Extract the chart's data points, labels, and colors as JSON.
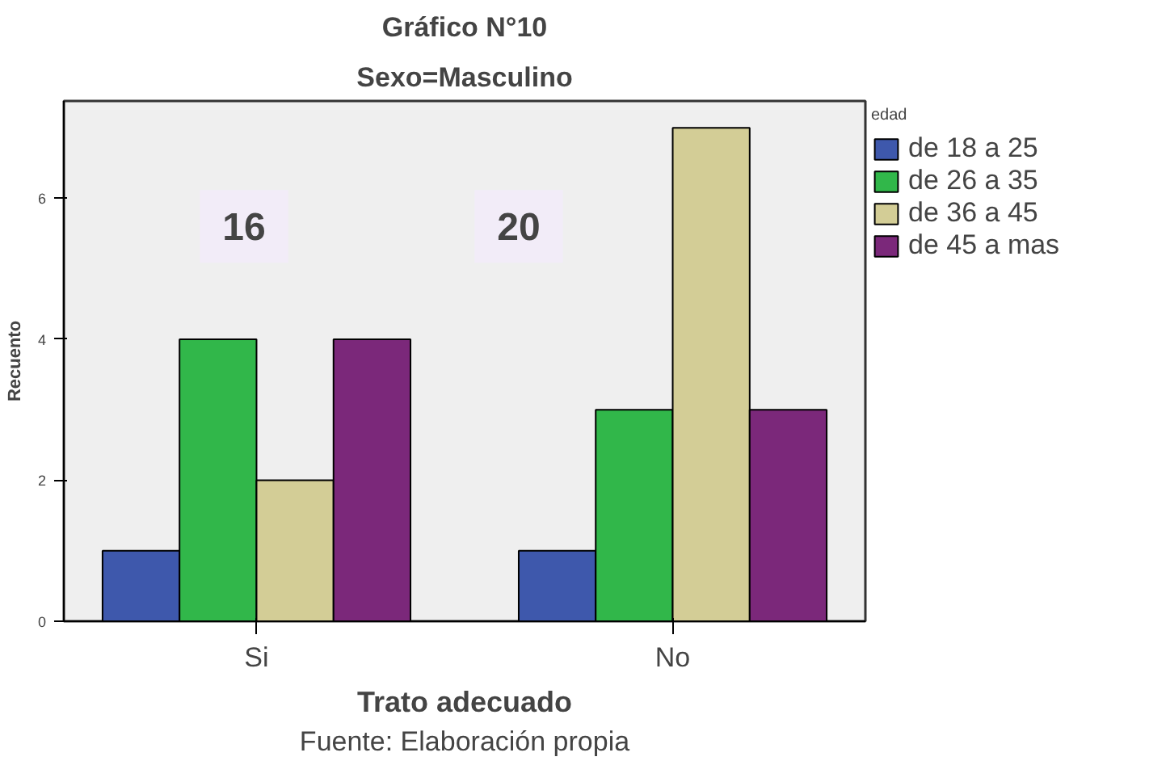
{
  "chart_data": {
    "type": "bar",
    "title": "Gráfico N°10",
    "subtitle": "Sexo=Masculino",
    "xlabel": "Trato adecuado",
    "ylabel": "Recuento",
    "legend_title": "edad",
    "categories": [
      "Si",
      "No"
    ],
    "series": [
      {
        "name": "de 18 a 25",
        "color": "#3e58ac",
        "values": [
          1,
          1
        ]
      },
      {
        "name": "de 26 a 35",
        "color": "#31b74a",
        "values": [
          4,
          3
        ]
      },
      {
        "name": "de 36 a 45",
        "color": "#d3cd96",
        "values": [
          2,
          7
        ]
      },
      {
        "name": "de 45 a mas",
        "color": "#7b287a",
        "values": [
          4,
          3
        ]
      }
    ],
    "ylim": [
      0,
      7.38
    ],
    "yticks": [
      0,
      2,
      4,
      6
    ],
    "grid": false,
    "legend": "right",
    "annotations": [
      "16",
      "20",
      "Fuente: Elaboración propia"
    ]
  }
}
